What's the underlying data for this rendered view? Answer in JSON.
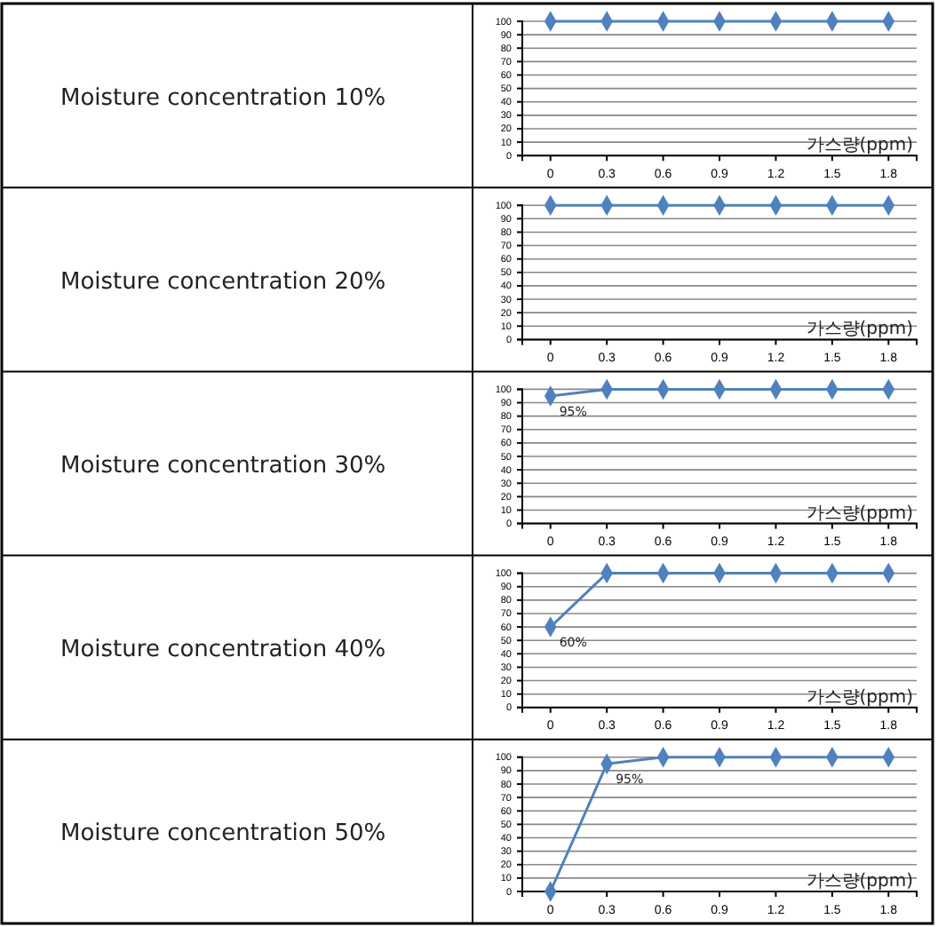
{
  "chart_data": [
    {
      "type": "line",
      "title": "Moisture concentration 10%",
      "xlabel": "가스량(ppm)",
      "categories": [
        "0",
        "0.3",
        "0.6",
        "0.9",
        "1.2",
        "1.5",
        "1.8"
      ],
      "series": [
        {
          "color": "#4f81bd",
          "values": [
            100,
            100,
            100,
            100,
            100,
            100,
            100
          ]
        }
      ],
      "ylim": [
        0,
        100
      ],
      "yticks": [
        0,
        10,
        20,
        30,
        40,
        50,
        60,
        70,
        80,
        90,
        100
      ],
      "grid": "y",
      "marker": "diamond"
    },
    {
      "type": "line",
      "title": "Moisture concentration 20%",
      "xlabel": "가스량(ppm)",
      "categories": [
        "0",
        "0.3",
        "0.6",
        "0.9",
        "1.2",
        "1.5",
        "1.8"
      ],
      "series": [
        {
          "color": "#4f81bd",
          "values": [
            100,
            100,
            100,
            100,
            100,
            100,
            100
          ]
        }
      ],
      "ylim": [
        0,
        100
      ],
      "yticks": [
        0,
        10,
        20,
        30,
        40,
        50,
        60,
        70,
        80,
        90,
        100
      ],
      "grid": "y",
      "marker": "diamond"
    },
    {
      "type": "line",
      "title": "Moisture concentration 30%",
      "xlabel": "가스량(ppm)",
      "categories": [
        "0",
        "0.3",
        "0.6",
        "0.9",
        "1.2",
        "1.5",
        "1.8"
      ],
      "series": [
        {
          "color": "#4f81bd",
          "values": [
            95,
            100,
            100,
            100,
            100,
            100,
            100
          ],
          "value_labels": [
            "95%",
            null,
            null,
            null,
            null,
            null,
            null
          ]
        }
      ],
      "ylim": [
        0,
        100
      ],
      "yticks": [
        0,
        10,
        20,
        30,
        40,
        50,
        60,
        70,
        80,
        90,
        100
      ],
      "grid": "y",
      "marker": "diamond"
    },
    {
      "type": "line",
      "title": "Moisture concentration 40%",
      "xlabel": "가스량(ppm)",
      "categories": [
        "0",
        "0.3",
        "0.6",
        "0.9",
        "1.2",
        "1.5",
        "1.8"
      ],
      "series": [
        {
          "color": "#4f81bd",
          "values": [
            60,
            100,
            100,
            100,
            100,
            100,
            100
          ],
          "value_labels": [
            "60%",
            null,
            null,
            null,
            null,
            null,
            null
          ]
        }
      ],
      "ylim": [
        0,
        100
      ],
      "yticks": [
        0,
        10,
        20,
        30,
        40,
        50,
        60,
        70,
        80,
        90,
        100
      ],
      "grid": "y",
      "marker": "diamond"
    },
    {
      "type": "line",
      "title": "Moisture concentration 50%",
      "xlabel": "가스량(ppm)",
      "categories": [
        "0",
        "0.3",
        "0.6",
        "0.9",
        "1.2",
        "1.5",
        "1.8"
      ],
      "series": [
        {
          "color": "#4f81bd",
          "values": [
            0,
            95,
            100,
            100,
            100,
            100,
            100
          ],
          "value_labels": [
            null,
            "95%",
            null,
            null,
            null,
            null,
            null
          ]
        }
      ],
      "ylim": [
        0,
        100
      ],
      "yticks": [
        0,
        10,
        20,
        30,
        40,
        50,
        60,
        70,
        80,
        90,
        100
      ],
      "grid": "y",
      "marker": "diamond"
    }
  ]
}
